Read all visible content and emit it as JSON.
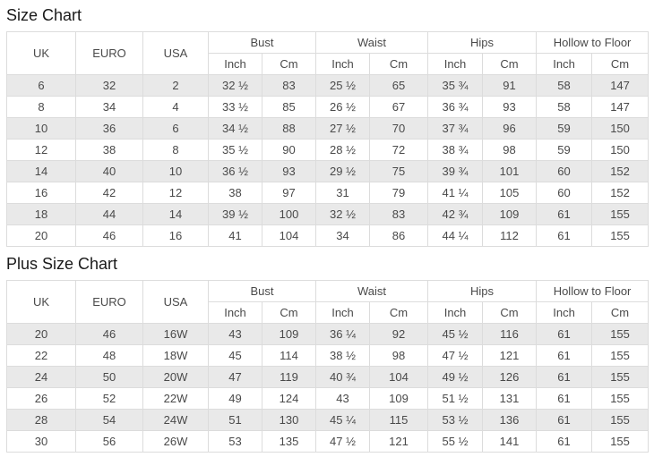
{
  "colors": {
    "stripe": "#e9e9e9",
    "border": "#dcdcdc",
    "text": "#4a4a4a",
    "title_text": "#1a1a1a",
    "background": "#ffffff"
  },
  "tables": [
    {
      "title": "Size Chart",
      "header": {
        "simple": [
          "UK",
          "EURO",
          "USA"
        ],
        "groups": [
          {
            "label": "Bust",
            "sub": [
              "Inch",
              "Cm"
            ]
          },
          {
            "label": "Waist",
            "sub": [
              "Inch",
              "Cm"
            ]
          },
          {
            "label": "Hips",
            "sub": [
              "Inch",
              "Cm"
            ]
          },
          {
            "label": "Hollow to Floor",
            "sub": [
              "Inch",
              "Cm"
            ]
          }
        ]
      },
      "rows": [
        [
          "6",
          "32",
          "2",
          "32 ½",
          "83",
          "25 ½",
          "65",
          "35 ¾",
          "91",
          "58",
          "147"
        ],
        [
          "8",
          "34",
          "4",
          "33 ½",
          "85",
          "26 ½",
          "67",
          "36 ¾",
          "93",
          "58",
          "147"
        ],
        [
          "10",
          "36",
          "6",
          "34 ½",
          "88",
          "27 ½",
          "70",
          "37 ¾",
          "96",
          "59",
          "150"
        ],
        [
          "12",
          "38",
          "8",
          "35 ½",
          "90",
          "28 ½",
          "72",
          "38 ¾",
          "98",
          "59",
          "150"
        ],
        [
          "14",
          "40",
          "10",
          "36 ½",
          "93",
          "29 ½",
          "75",
          "39 ¾",
          "101",
          "60",
          "152"
        ],
        [
          "16",
          "42",
          "12",
          "38",
          "97",
          "31",
          "79",
          "41 ¼",
          "105",
          "60",
          "152"
        ],
        [
          "18",
          "44",
          "14",
          "39 ½",
          "100",
          "32 ½",
          "83",
          "42 ¾",
          "109",
          "61",
          "155"
        ],
        [
          "20",
          "46",
          "16",
          "41",
          "104",
          "34",
          "86",
          "44 ¼",
          "112",
          "61",
          "155"
        ]
      ]
    },
    {
      "title": "Plus Size Chart",
      "header": {
        "simple": [
          "UK",
          "EURO",
          "USA"
        ],
        "groups": [
          {
            "label": "Bust",
            "sub": [
              "Inch",
              "Cm"
            ]
          },
          {
            "label": "Waist",
            "sub": [
              "Inch",
              "Cm"
            ]
          },
          {
            "label": "Hips",
            "sub": [
              "Inch",
              "Cm"
            ]
          },
          {
            "label": "Hollow to Floor",
            "sub": [
              "Inch",
              "Cm"
            ]
          }
        ]
      },
      "rows": [
        [
          "20",
          "46",
          "16W",
          "43",
          "109",
          "36 ¼",
          "92",
          "45 ½",
          "116",
          "61",
          "155"
        ],
        [
          "22",
          "48",
          "18W",
          "45",
          "114",
          "38 ½",
          "98",
          "47 ½",
          "121",
          "61",
          "155"
        ],
        [
          "24",
          "50",
          "20W",
          "47",
          "119",
          "40 ¾",
          "104",
          "49 ½",
          "126",
          "61",
          "155"
        ],
        [
          "26",
          "52",
          "22W",
          "49",
          "124",
          "43",
          "109",
          "51 ½",
          "131",
          "61",
          "155"
        ],
        [
          "28",
          "54",
          "24W",
          "51",
          "130",
          "45 ¼",
          "115",
          "53 ½",
          "136",
          "61",
          "155"
        ],
        [
          "30",
          "56",
          "26W",
          "53",
          "135",
          "47 ½",
          "121",
          "55 ½",
          "141",
          "61",
          "155"
        ]
      ]
    }
  ]
}
